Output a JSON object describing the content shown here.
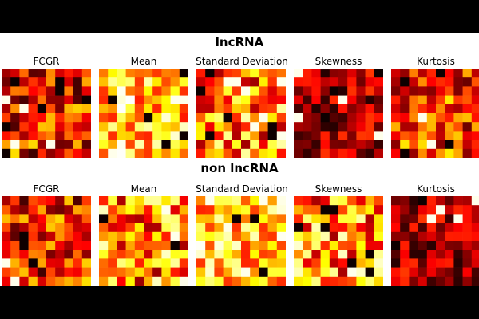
{
  "chart_data": [
    {
      "type": "heatmap",
      "group": "lncRNA",
      "colormap": "hot",
      "panels": [
        {
          "title": "FCGR",
          "style": "dark-mixed",
          "seed": 11
        },
        {
          "title": "Mean",
          "style": "light",
          "seed": 23
        },
        {
          "title": "Standard Deviation",
          "style": "mixed",
          "seed": 37
        },
        {
          "title": "Skewness",
          "style": "dark",
          "seed": 41
        },
        {
          "title": "Kurtosis",
          "style": "mixed-dark",
          "seed": 53
        }
      ]
    },
    {
      "type": "heatmap",
      "group": "non lncRNA",
      "colormap": "hot",
      "panels": [
        {
          "title": "FCGR",
          "style": "dark-mixed",
          "seed": 61
        },
        {
          "title": "Mean",
          "style": "mixed",
          "seed": 73
        },
        {
          "title": "Standard Deviation",
          "style": "light",
          "seed": 89
        },
        {
          "title": "Skewness",
          "style": "mixed",
          "seed": 97
        },
        {
          "title": "Kurtosis",
          "style": "dark",
          "seed": 103
        }
      ]
    }
  ],
  "figure": {
    "background": "#ffffff",
    "letterbox": "#000000",
    "row_titles": [
      "lncRNA",
      "non lncRNA"
    ]
  }
}
